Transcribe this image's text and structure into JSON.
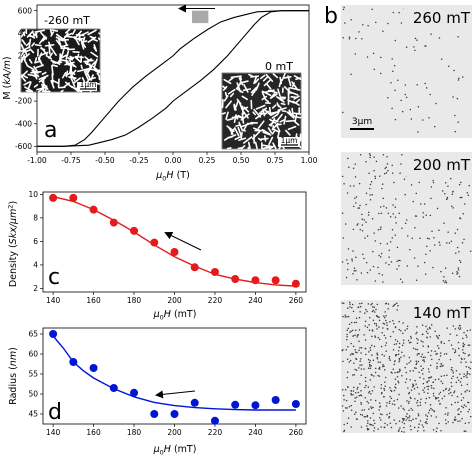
{
  "chart_data": [
    {
      "id": "a",
      "type": "line",
      "panel_label": "a",
      "xlabel": "μ0H (T)",
      "ylabel": "M (kA/m)",
      "xlim": [
        -1.0,
        1.0
      ],
      "ylim": [
        -650,
        650
      ],
      "xticks": [
        "-1.00",
        "-0.75",
        "-0.50",
        "-0.25",
        "0.00",
        "0.25",
        "0.50",
        "0.75",
        "1.00"
      ],
      "xtick_values": [
        -1.0,
        -0.75,
        -0.5,
        -0.25,
        0.0,
        0.25,
        0.5,
        0.75,
        1.0
      ],
      "yticks": [
        "600",
        "400",
        "200",
        "0",
        "-200",
        "-400",
        "-600"
      ],
      "ytick_values": [
        600,
        400,
        200,
        0,
        -200,
        -400,
        -600
      ],
      "series": [
        {
          "branch": "descending",
          "x": [
            1.0,
            0.8,
            0.62,
            0.55,
            0.45,
            0.35,
            0.25,
            0.15,
            0.05,
            0.0,
            -0.1,
            -0.2,
            -0.3,
            -0.4,
            -0.5,
            -0.6,
            -0.65,
            -0.72,
            -0.8,
            -1.0
          ],
          "y": [
            600,
            600,
            590,
            570,
            540,
            500,
            430,
            350,
            260,
            200,
            110,
            20,
            -80,
            -200,
            -340,
            -480,
            -540,
            -590,
            -600,
            -600
          ]
        },
        {
          "branch": "ascending",
          "x": [
            -1.0,
            -0.8,
            -0.62,
            -0.55,
            -0.45,
            -0.35,
            -0.25,
            -0.15,
            -0.05,
            0.0,
            0.1,
            0.2,
            0.3,
            0.4,
            0.5,
            0.6,
            0.65,
            0.72,
            0.8,
            1.0
          ],
          "y": [
            -600,
            -600,
            -590,
            -570,
            -540,
            -500,
            -430,
            -350,
            -260,
            -200,
            -110,
            -20,
            80,
            200,
            340,
            480,
            540,
            590,
            600,
            600
          ]
        }
      ],
      "highlight_range_x": [
        0.14,
        0.26
      ],
      "highlight_range_y": [
        490,
        600
      ],
      "insets": [
        {
          "label": "-260 mT",
          "scale_label": "1μm"
        },
        {
          "label": "0 mT",
          "scale_label": "1μm"
        }
      ]
    },
    {
      "id": "c",
      "type": "scatter",
      "panel_label": "c",
      "xlabel": "μ0H (mT)",
      "ylabel": "Density (Skx/μm²)",
      "xlim": [
        135,
        265
      ],
      "ylim": [
        1.7,
        10.2
      ],
      "xticks": [
        "140",
        "160",
        "180",
        "200",
        "220",
        "240",
        "260"
      ],
      "xtick_values": [
        140,
        160,
        180,
        200,
        220,
        240,
        260
      ],
      "yticks": [
        "10",
        "8",
        "6",
        "4",
        "2"
      ],
      "ytick_values": [
        10,
        8,
        6,
        4,
        2
      ],
      "color": "#e41a1c",
      "points": {
        "x": [
          140,
          150,
          160,
          170,
          180,
          190,
          200,
          210,
          220,
          230,
          240,
          250,
          260
        ],
        "y": [
          9.7,
          9.7,
          8.7,
          7.6,
          6.9,
          5.9,
          5.1,
          3.8,
          3.4,
          2.8,
          2.7,
          2.7,
          2.4
        ]
      },
      "fit": {
        "x": [
          140,
          150,
          160,
          170,
          180,
          190,
          200,
          210,
          220,
          230,
          240,
          250,
          260
        ],
        "y": [
          9.8,
          9.4,
          8.7,
          7.8,
          6.8,
          5.7,
          4.7,
          3.9,
          3.2,
          2.8,
          2.5,
          2.3,
          2.2
        ]
      }
    },
    {
      "id": "d",
      "type": "scatter",
      "panel_label": "d",
      "xlabel": "μ0H (mT)",
      "ylabel": "Radius (nm)",
      "xlim": [
        135,
        265
      ],
      "ylim": [
        42.5,
        66.5
      ],
      "xticks": [
        "140",
        "160",
        "180",
        "200",
        "220",
        "240",
        "260"
      ],
      "xtick_values": [
        140,
        160,
        180,
        200,
        220,
        240,
        260
      ],
      "yticks": [
        "65",
        "60",
        "55",
        "50",
        "45"
      ],
      "ytick_values": [
        65,
        60,
        55,
        50,
        45
      ],
      "color": "#0015d6",
      "points": {
        "x": [
          140,
          150,
          160,
          170,
          180,
          190,
          200,
          210,
          220,
          230,
          240,
          250,
          260
        ],
        "y": [
          65.0,
          58.0,
          56.5,
          51.5,
          50.3,
          45.0,
          45.0,
          47.8,
          43.3,
          47.3,
          47.2,
          48.5,
          47.5
        ]
      },
      "fit": {
        "x": [
          140,
          145,
          150,
          155,
          160,
          170,
          180,
          190,
          200,
          210,
          220,
          230,
          240,
          250,
          260
        ],
        "y": [
          64.5,
          61.5,
          58.0,
          55.8,
          54.0,
          51.3,
          49.3,
          47.9,
          47.1,
          46.6,
          46.3,
          46.1,
          46.0,
          46.0,
          46.0
        ]
      }
    }
  ],
  "images": {
    "panel_label": "b",
    "scale_label": "3μm",
    "panels": [
      {
        "field_label": "260 mT",
        "dot_count": 80
      },
      {
        "field_label": "200 mT",
        "dot_count": 260
      },
      {
        "field_label": "140 mT",
        "dot_count": 820
      }
    ]
  }
}
